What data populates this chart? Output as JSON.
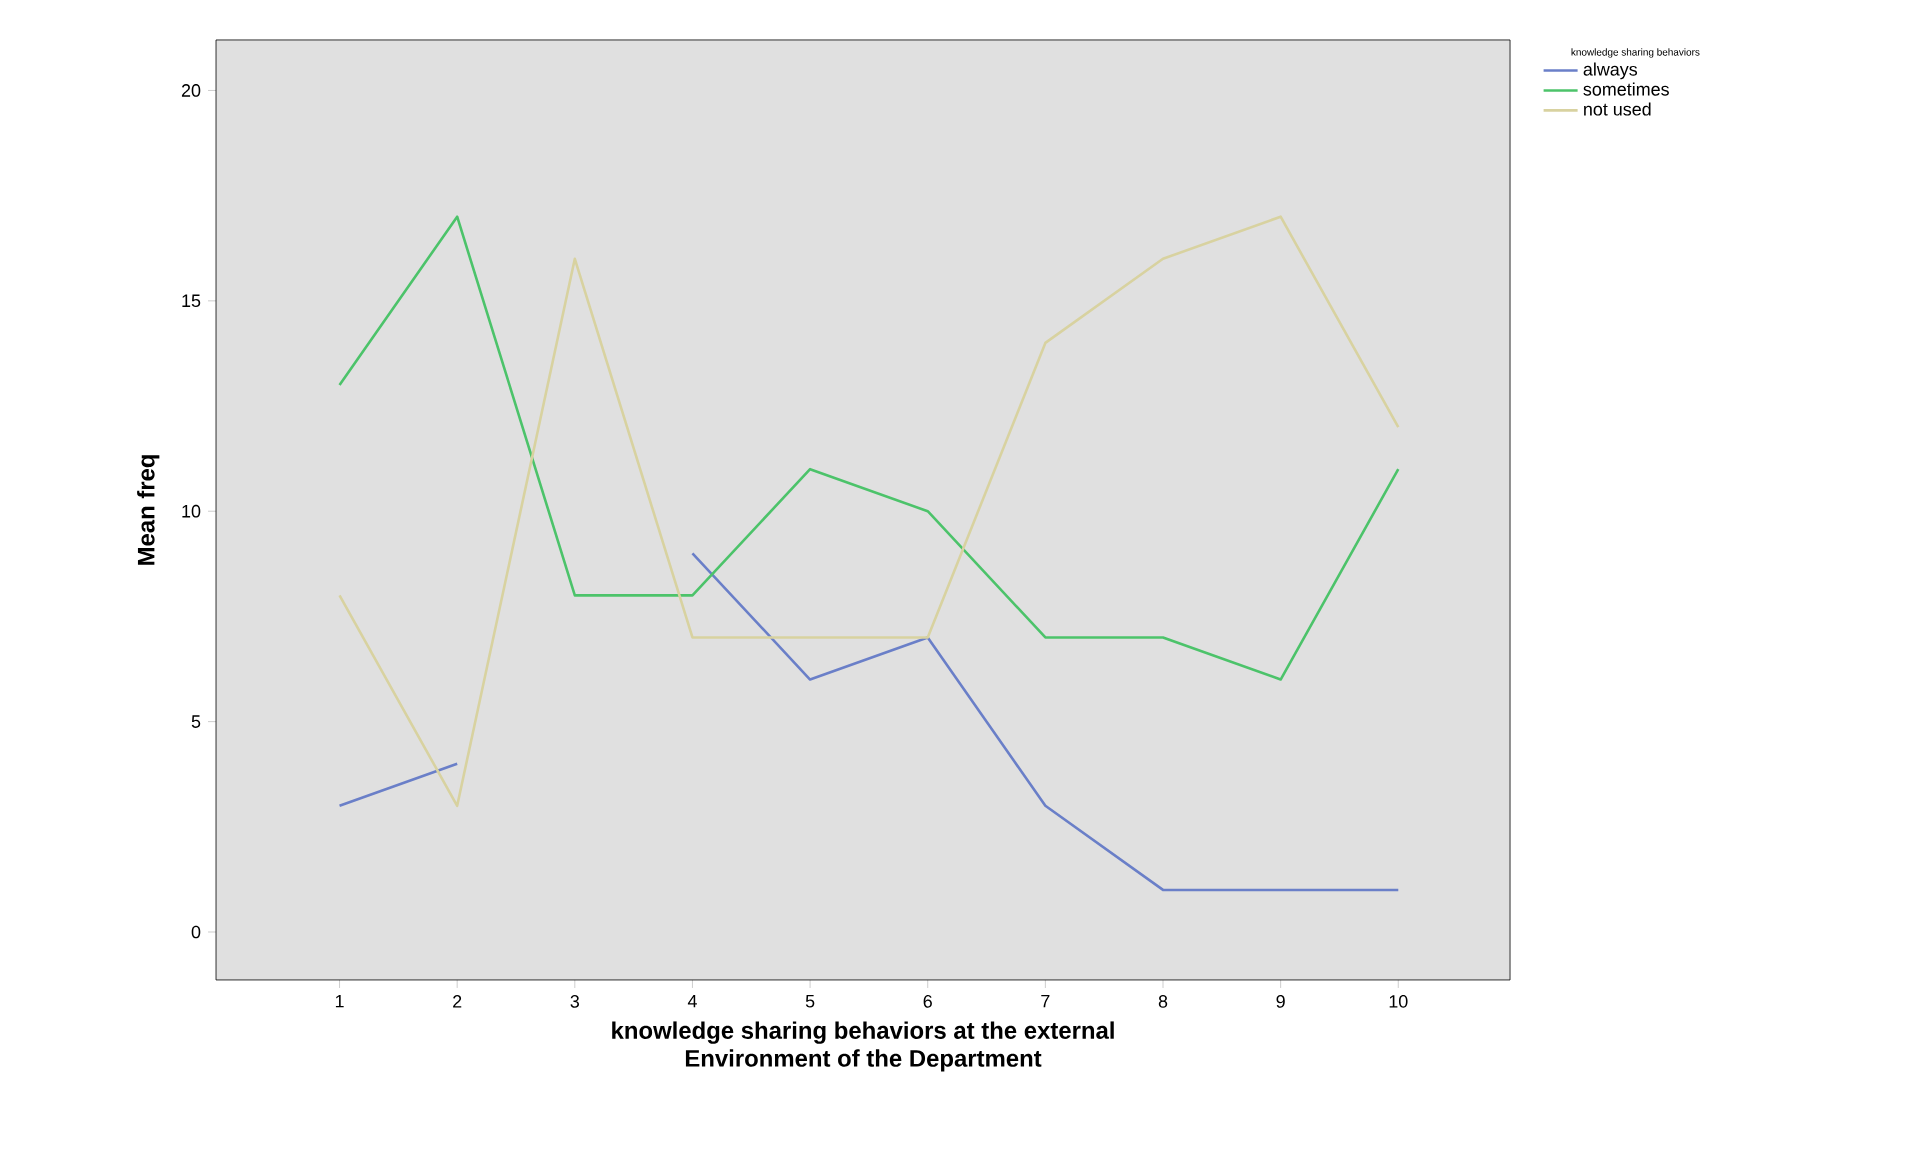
{
  "chart_data": {
    "type": "line",
    "xlabel": "knowledge sharing behaviors at the external Environment of the Department",
    "ylabel": "Mean freq",
    "legend_title": "knowledge sharing behaviors",
    "categories": [
      "1",
      "2",
      "3",
      "4",
      "5",
      "6",
      "7",
      "8",
      "9",
      "10"
    ],
    "series": [
      {
        "name": "always",
        "color": "#6a7fc8",
        "values": [
          3,
          4,
          null,
          9,
          6,
          7,
          3,
          1,
          1,
          1
        ]
      },
      {
        "name": "sometimes",
        "color": "#4cc36a",
        "values": [
          13,
          17,
          8,
          8,
          11,
          10,
          7,
          7,
          6,
          11
        ]
      },
      {
        "name": "not used",
        "color": "#d8d2a0",
        "values": [
          8,
          3,
          16,
          7,
          7,
          7,
          14,
          16,
          17,
          12
        ]
      }
    ],
    "ylim": [
      -1.14,
      21.2
    ],
    "yticks": [
      0,
      5,
      10,
      15,
      20
    ],
    "grid": false,
    "legend": "top right",
    "marker": "none",
    "line_style": "solid"
  }
}
